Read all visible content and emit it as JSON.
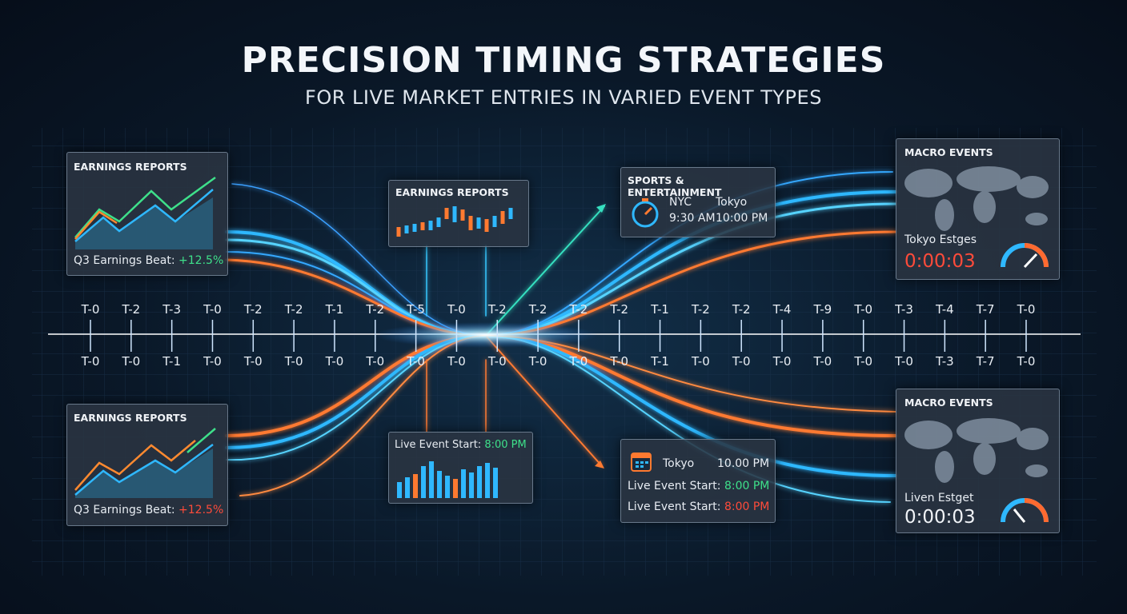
{
  "header": {
    "title": "PRECISION TIMING STRATEGIES",
    "subtitle": "FOR LIVE MARKET ENTRIES IN VARIED EVENT TYPES"
  },
  "timeline": {
    "top": [
      "T-0",
      "T-2",
      "T-3",
      "T-0",
      "T-2",
      "T-2",
      "T-1",
      "T-2",
      "T-5",
      "T-0",
      "T-2",
      "T-2",
      "T-2",
      "T-2",
      "T-1",
      "T-2",
      "T-2",
      "T-4",
      "T-9",
      "T-0",
      "T-3",
      "T-4",
      "T-7",
      "T-0"
    ],
    "bottom": [
      "T-0",
      "T-0",
      "T-1",
      "T-0",
      "T-0",
      "T-0",
      "T-0",
      "T-0",
      "T-0",
      "T-0",
      "T-0",
      "T-0",
      "T-0",
      "T-0",
      "T-1",
      "T-0",
      "T-0",
      "T-0",
      "T-0",
      "T-0",
      "T-0",
      "T-3",
      "T-7",
      "T-0"
    ]
  },
  "panels": [
    {
      "heading": "EARNINGS REPORTS",
      "caption": "Q3 Earnings Beat:",
      "change": "+12.5%"
    },
    {
      "heading": "EARNINGS REPORTS"
    },
    {
      "heading": "SPORTS & ENTERTAINMENT",
      "city_a": "NYC",
      "city_b": "Tokyo",
      "time_a": "9:30 AM",
      "time_b": "10:00 PM"
    },
    {
      "heading": "MACRO EVENTS",
      "caption": "Tokyo Estges",
      "timer": "0:00:03"
    },
    {
      "heading": "EARNINGS REPORTS",
      "caption": "Q3 Earnings Beat:",
      "change": "+12.5%"
    },
    {
      "caption": "Live Event Start:",
      "time": "8:00 PM"
    },
    {
      "city": "Tokyo",
      "city_time": "10.00 PM",
      "line_1": "Live Event Start:",
      "time_1": "8:00 PM",
      "line_2": "Live Event Start:",
      "time_2": "8:00 PM"
    },
    {
      "heading": "MACRO EVENTS",
      "caption": "Liven Estget",
      "timer": "0:00:03"
    }
  ]
}
